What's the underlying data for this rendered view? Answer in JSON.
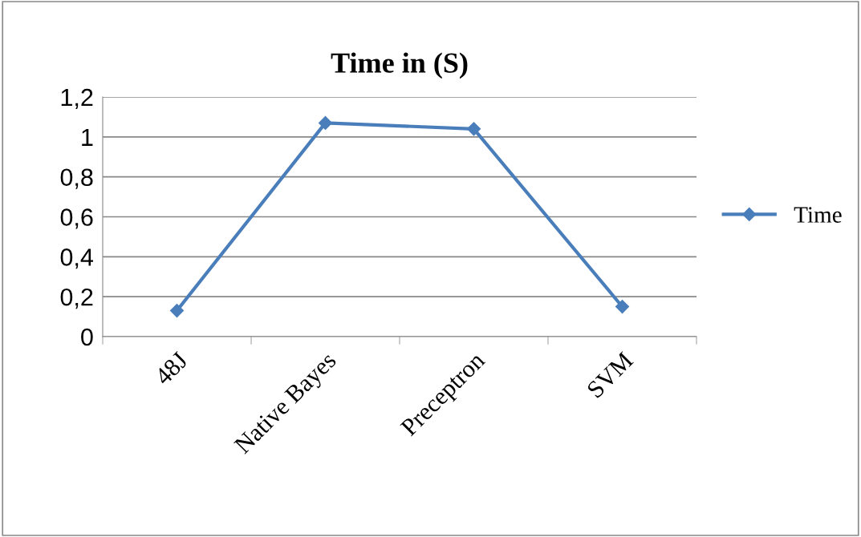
{
  "chart_data": {
    "type": "line",
    "title": "Time in (S)",
    "categories": [
      "48J",
      "Native Bayes",
      "Preceptron",
      "SVM"
    ],
    "series": [
      {
        "name": "Time",
        "color": "#4a7ebb",
        "values": [
          0.13,
          1.07,
          1.04,
          0.15
        ]
      }
    ],
    "ylim": [
      0,
      1.2
    ],
    "yticks": [
      0,
      {
        "value": 0.2,
        "label": "0,2"
      },
      {
        "value": 0.4,
        "label": "0,4"
      },
      {
        "value": 0.6,
        "label": "0,6"
      },
      {
        "value": 0.8,
        "label": "0,8"
      },
      1,
      {
        "value": 1.2,
        "label": "1,2"
      }
    ],
    "grid": "y",
    "legend": "right",
    "marker": "diamond",
    "line_style": "solid"
  }
}
